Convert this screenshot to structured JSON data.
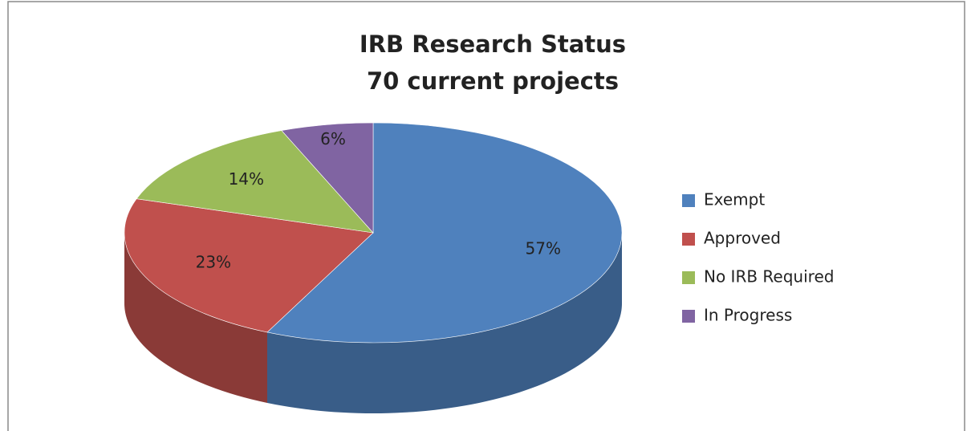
{
  "chart_data": {
    "type": "pie",
    "title": "IRB Research Status",
    "subtitle": "70 current projects",
    "categories": [
      "Exempt",
      "Approved",
      "No IRB Required",
      "In Progress"
    ],
    "values": [
      57,
      23,
      14,
      6
    ],
    "value_labels": [
      "57%",
      "23%",
      "14%",
      "6%"
    ],
    "colors": [
      "#4f81bd",
      "#c0504d",
      "#9bbb59",
      "#8064a2"
    ],
    "legend": "right"
  }
}
